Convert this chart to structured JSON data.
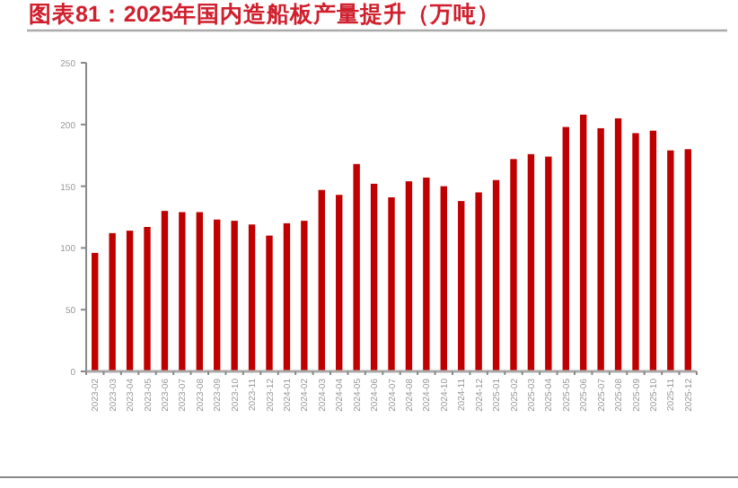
{
  "chart_data": {
    "type": "bar",
    "title": "图表81：2025年国内造船板产量提升（万吨）",
    "categories": [
      "2023-02",
      "2023-03",
      "2023-04",
      "2023-05",
      "2023-06",
      "2023-07",
      "2023-08",
      "2023-09",
      "2023-10",
      "2023-11",
      "2023-12",
      "2024-01",
      "2024-02",
      "2024-03",
      "2024-04",
      "2024-05",
      "2024-06",
      "2024-07",
      "2024-08",
      "2024-09",
      "2024-10",
      "2024-11",
      "2024-12",
      "2025-01",
      "2025-02",
      "2025-03",
      "2025-04",
      "2025-05",
      "2025-06",
      "2025-07",
      "2025-08",
      "2025-09",
      "2025-10",
      "2025-11",
      "2025-12"
    ],
    "values": [
      96,
      112,
      114,
      117,
      130,
      129,
      129,
      123,
      122,
      119,
      110,
      120,
      122,
      147,
      143,
      168,
      152,
      141,
      154,
      157,
      150,
      138,
      145,
      155,
      172,
      176,
      174,
      198,
      208,
      197,
      205,
      193,
      195,
      179,
      180
    ],
    "color": "#c00000",
    "ylim": [
      0,
      250
    ],
    "yticks": [
      0,
      50,
      100,
      150,
      200,
      250
    ],
    "grid": false
  }
}
